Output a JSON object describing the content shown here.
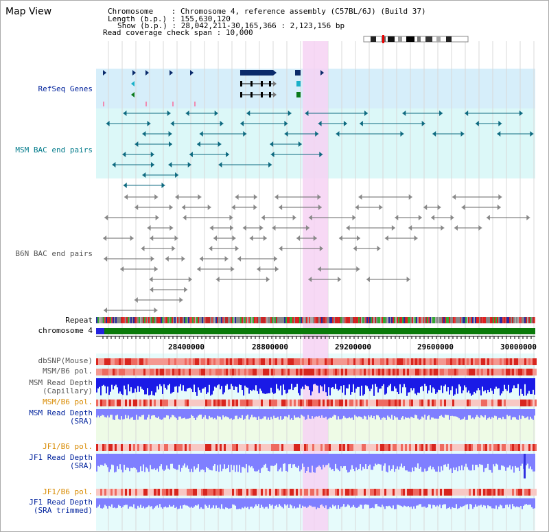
{
  "page": {
    "title": "Map View"
  },
  "info": {
    "chromosome_label": "Chromosome",
    "chromosome_value": "Chromosome 4, reference assembly (C57BL/6J) (Build 37)",
    "length_label": "Length (b.p.)",
    "length_value": "155,630,120",
    "show_label": "Show (b.p.)",
    "show_value": "28,042,211-30,165,366 : 2,123,156 bp",
    "coverage_label": "Read coverage check span",
    "coverage_value": "10,000"
  },
  "tracks": {
    "refseq": "RefSeq Genes",
    "msm_bac": "MSM BAC end pairs",
    "b6n_bac": "B6N BAC end pairs",
    "repeat": "Repeat",
    "chromosome": "chromosome 4",
    "dbsnp": "dbSNP(Mouse)",
    "msm_b6_pol_1": "MSM/B6 pol.",
    "msm_depth_cap_1": "MSM Read Depth",
    "msm_depth_cap_2": "(Capillary)",
    "msm_b6_pol_2": "MSM/B6 pol.",
    "msm_depth_sra_1": "MSM Read Depth",
    "msm_depth_sra_2": "(SRA)",
    "jf1_b6_pol_1": "JF1/B6 pol.",
    "jf1_depth_sra_1": "JF1 Read Depth",
    "jf1_depth_sra_2": "(SRA)",
    "jf1_b6_pol_2": "JF1/B6 pol.",
    "jf1_depth_trim_1": "JF1 Read Depth",
    "jf1_depth_trim_2": "(SRA trimmed)"
  },
  "axis": {
    "ticks": [
      "28400000",
      "28800000",
      "29200000",
      "29600000",
      "30000000"
    ],
    "tick_values": [
      28400000,
      28800000,
      29200000,
      29600000,
      30000000
    ],
    "start": 28042211,
    "end": 30165366
  },
  "colors": {
    "highlight": "#f6d2f3",
    "refseq_bg": "#d6eefa",
    "msm_bg": "#dcf8f8",
    "lower_bg": "#e6fbfb",
    "gene_dark": "#0a2a6a",
    "gene_teal": "#19b0c8",
    "gene_green": "#0a7a1a",
    "bac_teal": "#0e6a80",
    "bac_grey": "#666666",
    "chrom_green": "#0a7a0a",
    "depth_blue": "#1a1ae6",
    "depth_light": "#7f7fff",
    "pol_red": "#e0302a"
  }
}
